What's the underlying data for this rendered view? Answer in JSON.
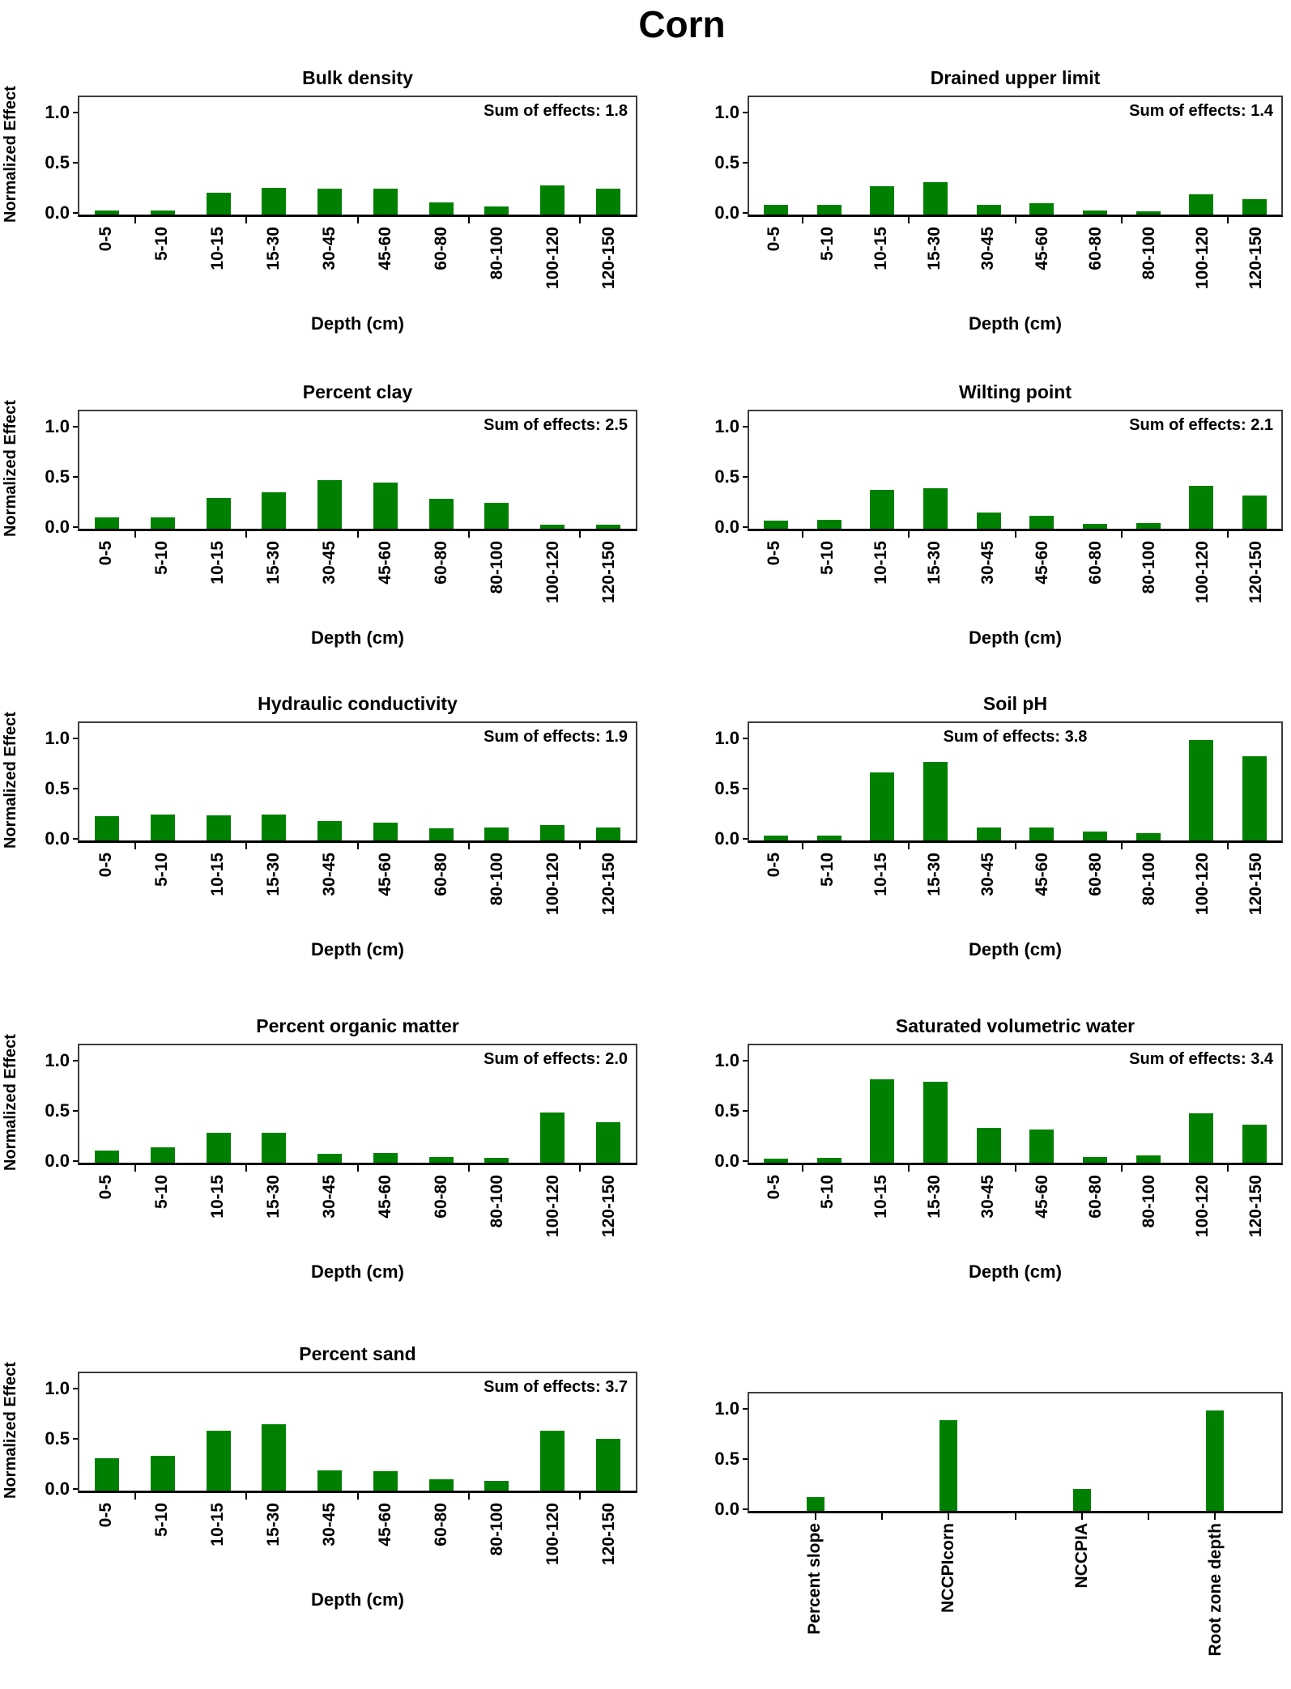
{
  "figure_title": "Corn",
  "colors": {
    "bar": "#008000",
    "plot_border": "#3d3d3d",
    "axis": "#000000",
    "text": "#000000",
    "background": "#ffffff"
  },
  "axis_defaults": {
    "y_label": "Normalized Effect",
    "x_label": "Depth (cm)",
    "y_ticks": [
      1.0,
      0.5,
      0.0
    ],
    "ylim": [
      0,
      1.17
    ]
  },
  "depth_categories": [
    "0-5",
    "5-10",
    "10-15",
    "15-30",
    "30-45",
    "45-60",
    "60-80",
    "80-100",
    "100-120",
    "120-150"
  ],
  "chart_data": [
    {
      "type": "bar",
      "id": "bulk-density",
      "title": "Bulk density",
      "annotation": "Sum of effects: 1.8",
      "annotation_align": "right",
      "ylabel": "Normalized Effect",
      "xlabel": "Depth (cm)",
      "categories": "depth",
      "values": [
        0.04,
        0.04,
        0.22,
        0.27,
        0.26,
        0.26,
        0.12,
        0.08,
        0.29,
        0.26
      ],
      "ylim": [
        0,
        1.17
      ],
      "yticks": [
        0.0,
        0.5,
        1.0
      ]
    },
    {
      "type": "bar",
      "id": "drained-upper-limit",
      "title": "Drained upper limit",
      "annotation": "Sum of effects: 1.4",
      "annotation_align": "right",
      "ylabel": "",
      "xlabel": "Depth (cm)",
      "categories": "depth",
      "values": [
        0.1,
        0.1,
        0.28,
        0.32,
        0.1,
        0.11,
        0.04,
        0.03,
        0.2,
        0.15
      ],
      "ylim": [
        0,
        1.17
      ],
      "yticks": [
        0.0,
        0.5,
        1.0
      ]
    },
    {
      "type": "bar",
      "id": "percent-clay",
      "title": "Percent clay",
      "annotation": "Sum of effects: 2.5",
      "annotation_align": "right",
      "ylabel": "Normalized Effect",
      "xlabel": "Depth (cm)",
      "categories": "depth",
      "values": [
        0.11,
        0.11,
        0.31,
        0.36,
        0.48,
        0.46,
        0.3,
        0.26,
        0.04,
        0.04
      ],
      "ylim": [
        0,
        1.17
      ],
      "yticks": [
        0.0,
        0.5,
        1.0
      ]
    },
    {
      "type": "bar",
      "id": "wilting-point",
      "title": "Wilting point",
      "annotation": "Sum of effects: 2.1",
      "annotation_align": "right",
      "ylabel": "",
      "xlabel": "Depth (cm)",
      "categories": "depth",
      "values": [
        0.08,
        0.09,
        0.39,
        0.4,
        0.16,
        0.13,
        0.05,
        0.06,
        0.43,
        0.33
      ],
      "ylim": [
        0,
        1.17
      ],
      "yticks": [
        0.0,
        0.5,
        1.0
      ]
    },
    {
      "type": "bar",
      "id": "hydraulic-conductivity",
      "title": "Hydraulic conductivity",
      "annotation": "Sum of effects: 1.9",
      "annotation_align": "right",
      "ylabel": "Normalized Effect",
      "xlabel": "Depth (cm)",
      "categories": "depth",
      "values": [
        0.24,
        0.26,
        0.25,
        0.26,
        0.19,
        0.18,
        0.12,
        0.13,
        0.15,
        0.13
      ],
      "ylim": [
        0,
        1.17
      ],
      "yticks": [
        0.0,
        0.5,
        1.0
      ]
    },
    {
      "type": "bar",
      "id": "soil-ph",
      "title": "Soil pH",
      "annotation": "Sum of effects: 3.8",
      "annotation_align": "center",
      "ylabel": "",
      "xlabel": "Depth (cm)",
      "categories": "depth",
      "values": [
        0.05,
        0.05,
        0.68,
        0.78,
        0.13,
        0.13,
        0.09,
        0.07,
        1.0,
        0.84
      ],
      "ylim": [
        0,
        1.17
      ],
      "yticks": [
        0.0,
        0.5,
        1.0
      ]
    },
    {
      "type": "bar",
      "id": "percent-organic-matter",
      "title": "Percent organic matter",
      "annotation": "Sum of effects: 2.0",
      "annotation_align": "right",
      "ylabel": "Normalized Effect",
      "xlabel": "Depth (cm)",
      "categories": "depth",
      "values": [
        0.12,
        0.15,
        0.3,
        0.3,
        0.09,
        0.1,
        0.06,
        0.05,
        0.5,
        0.4
      ],
      "ylim": [
        0,
        1.17
      ],
      "yticks": [
        0.0,
        0.5,
        1.0
      ]
    },
    {
      "type": "bar",
      "id": "saturated-volumetric-water",
      "title": "Saturated volumetric water",
      "annotation": "Sum of effects: 3.4",
      "annotation_align": "right",
      "ylabel": "",
      "xlabel": "Depth (cm)",
      "categories": "depth",
      "values": [
        0.04,
        0.05,
        0.83,
        0.81,
        0.35,
        0.33,
        0.06,
        0.07,
        0.49,
        0.38
      ],
      "ylim": [
        0,
        1.17
      ],
      "yticks": [
        0.0,
        0.5,
        1.0
      ]
    },
    {
      "type": "bar",
      "id": "percent-sand",
      "title": "Percent sand",
      "annotation": "Sum of effects: 3.7",
      "annotation_align": "right",
      "ylabel": "Normalized Effect",
      "xlabel": "Depth (cm)",
      "categories": "depth",
      "values": [
        0.32,
        0.35,
        0.6,
        0.66,
        0.2,
        0.19,
        0.11,
        0.1,
        0.6,
        0.52
      ],
      "ylim": [
        0,
        1.17
      ],
      "yticks": [
        0.0,
        0.5,
        1.0
      ]
    },
    {
      "type": "bar",
      "id": "site-properties",
      "title": "",
      "annotation": "",
      "annotation_align": null,
      "ylabel": "",
      "xlabel": "",
      "categories": [
        "Percent slope",
        "NCCPIcorn",
        "NCCPIA",
        "Root zone depth"
      ],
      "values": [
        0.14,
        0.9,
        0.22,
        1.0
      ],
      "narrow_bars": true,
      "offset_top": true,
      "ylim": [
        0,
        1.17
      ],
      "yticks": [
        0.0,
        0.5,
        1.0
      ]
    }
  ]
}
